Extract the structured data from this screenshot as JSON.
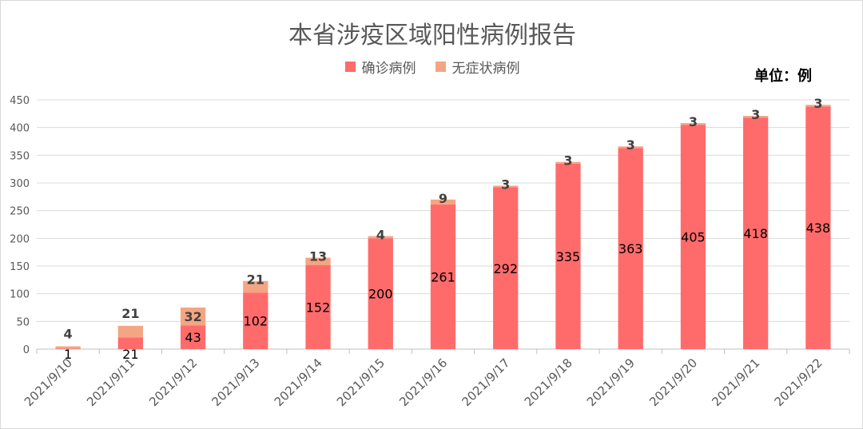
{
  "chart_data": {
    "type": "bar",
    "stacked": true,
    "title": "本省涉疫区域阳性病例报告",
    "unit_note": "单位：例",
    "categories": [
      "2021/9/10",
      "2021/9/11",
      "2021/9/12",
      "2021/9/13",
      "2021/9/14",
      "2021/9/15",
      "2021/9/16",
      "2021/9/17",
      "2021/9/18",
      "2021/9/19",
      "2021/9/20",
      "2021/9/21",
      "2021/9/22"
    ],
    "series": [
      {
        "name": "确诊病例",
        "color": "#ff6b6b",
        "values": [
          1,
          21,
          43,
          102,
          152,
          200,
          261,
          292,
          335,
          363,
          405,
          418,
          438
        ]
      },
      {
        "name": "无症状病例",
        "color": "#f4a583",
        "values": [
          4,
          21,
          32,
          21,
          13,
          4,
          9,
          3,
          3,
          3,
          3,
          3,
          3
        ]
      }
    ],
    "ylim": [
      0,
      450
    ],
    "yticks": [
      "0",
      "50",
      "100",
      "150",
      "200",
      "250",
      "300",
      "350",
      "400",
      "450"
    ],
    "grid": true,
    "legend_position": "top"
  }
}
